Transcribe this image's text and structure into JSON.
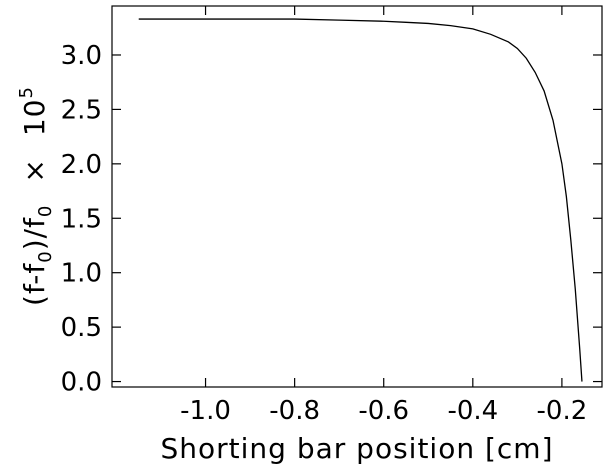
{
  "chart_data": {
    "type": "line",
    "title": "",
    "xlabel": "Shorting bar position [cm]",
    "ylabel": {
      "prefix": "(f-f",
      "sub1": "0",
      "mid": ")/f",
      "sub2": "0",
      "times": "×",
      "base": "10",
      "exp": "5"
    },
    "xlim": [
      -1.21,
      -0.11
    ],
    "ylim": [
      -0.05,
      3.45
    ],
    "grid": false,
    "legend": "none",
    "x_ticks": [
      {
        "value": -1.0,
        "label": "-1.0"
      },
      {
        "value": -0.8,
        "label": "-0.8"
      },
      {
        "value": -0.6,
        "label": "-0.6"
      },
      {
        "value": -0.4,
        "label": "-0.4"
      },
      {
        "value": -0.2,
        "label": "-0.2"
      }
    ],
    "y_ticks": [
      {
        "value": 0.0,
        "label": "0.0"
      },
      {
        "value": 0.5,
        "label": "0.5"
      },
      {
        "value": 1.0,
        "label": "1.0"
      },
      {
        "value": 1.5,
        "label": "1.5"
      },
      {
        "value": 2.0,
        "label": "2.0"
      },
      {
        "value": 2.5,
        "label": "2.5"
      },
      {
        "value": 3.0,
        "label": "3.0"
      }
    ],
    "series": [
      {
        "color": "#000000",
        "x": [
          -1.15,
          -1.0,
          -0.9,
          -0.8,
          -0.7,
          -0.6,
          -0.55,
          -0.5,
          -0.45,
          -0.4,
          -0.36,
          -0.32,
          -0.3,
          -0.28,
          -0.26,
          -0.24,
          -0.22,
          -0.2,
          -0.19,
          -0.18,
          -0.17,
          -0.16,
          -0.155
        ],
        "y": [
          3.33,
          3.33,
          3.33,
          3.33,
          3.32,
          3.31,
          3.3,
          3.29,
          3.27,
          3.24,
          3.19,
          3.12,
          3.06,
          2.97,
          2.84,
          2.67,
          2.4,
          2.0,
          1.7,
          1.3,
          0.85,
          0.3,
          0.0
        ]
      }
    ]
  }
}
